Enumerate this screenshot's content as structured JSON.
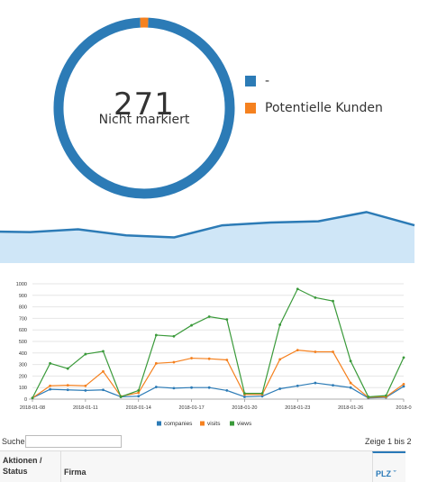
{
  "donut": {
    "center_value": "271",
    "center_label": "Nicht markiert",
    "colors": {
      "main": "#2c7bb6",
      "secondary": "#f5811f"
    },
    "legend": [
      {
        "label": "-",
        "color": "#2c7bb6"
      },
      {
        "label": "Potentielle Kunden",
        "color": "#f5811f"
      }
    ]
  },
  "chart_data": [
    {
      "type": "pie",
      "categories": [
        "-",
        "Potentielle Kunden"
      ],
      "values": [
        271,
        4
      ],
      "colors": [
        "#2c7bb6",
        "#f5811f"
      ]
    },
    {
      "type": "area",
      "values": [
        270,
        268,
        275,
        260,
        255,
        285,
        292,
        295,
        318,
        285
      ],
      "ylim": [
        200,
        330
      ],
      "colors": {
        "line": "#2c7bb6",
        "fill": "#cfe6f7"
      }
    },
    {
      "type": "line",
      "x": [
        "2018-01-08",
        "2018-01-09",
        "2018-01-10",
        "2018-01-11",
        "2018-01-12",
        "2018-01-13",
        "2018-01-14",
        "2018-01-15",
        "2018-01-16",
        "2018-01-17",
        "2018-01-18",
        "2018-01-19",
        "2018-01-20",
        "2018-01-21",
        "2018-01-22",
        "2018-01-23",
        "2018-01-24",
        "2018-01-25",
        "2018-01-26",
        "2018-01-27",
        "2018-01-28",
        "2018-01-29"
      ],
      "xticks": [
        "2018-01-08",
        "2018-01-11",
        "2018-01-14",
        "2018-01-17",
        "2018-01-20",
        "2018-01-23",
        "2018-01-26",
        "2018-0"
      ],
      "xtick_index": [
        0,
        3,
        6,
        9,
        12,
        15,
        18,
        21
      ],
      "yticks": [
        0,
        100,
        200,
        300,
        400,
        500,
        600,
        700,
        800,
        900,
        1000
      ],
      "ylim": [
        0,
        1000
      ],
      "series": [
        {
          "name": "companies",
          "color": "#2c7bb6",
          "values": [
            10,
            85,
            80,
            75,
            80,
            20,
            25,
            105,
            95,
            100,
            100,
            75,
            20,
            25,
            90,
            115,
            140,
            120,
            100,
            10,
            15,
            110
          ]
        },
        {
          "name": "visits",
          "color": "#f5811f",
          "values": [
            10,
            115,
            120,
            115,
            240,
            25,
            55,
            310,
            320,
            355,
            350,
            340,
            40,
            40,
            345,
            425,
            410,
            410,
            140,
            15,
            20,
            130
          ]
        },
        {
          "name": "views",
          "color": "#3a9a3a",
          "values": [
            10,
            310,
            265,
            390,
            415,
            20,
            75,
            555,
            545,
            640,
            715,
            690,
            50,
            50,
            645,
            955,
            880,
            850,
            330,
            20,
            30,
            360
          ]
        }
      ]
    }
  ],
  "search": {
    "label": "Suche:",
    "value": ""
  },
  "info": {
    "text": "Zeige 1 bis 2"
  },
  "table": {
    "columns": [
      {
        "label": "Aktionen / Status"
      },
      {
        "label": "Firma"
      },
      {
        "label": "PLZ ˇ"
      }
    ]
  }
}
